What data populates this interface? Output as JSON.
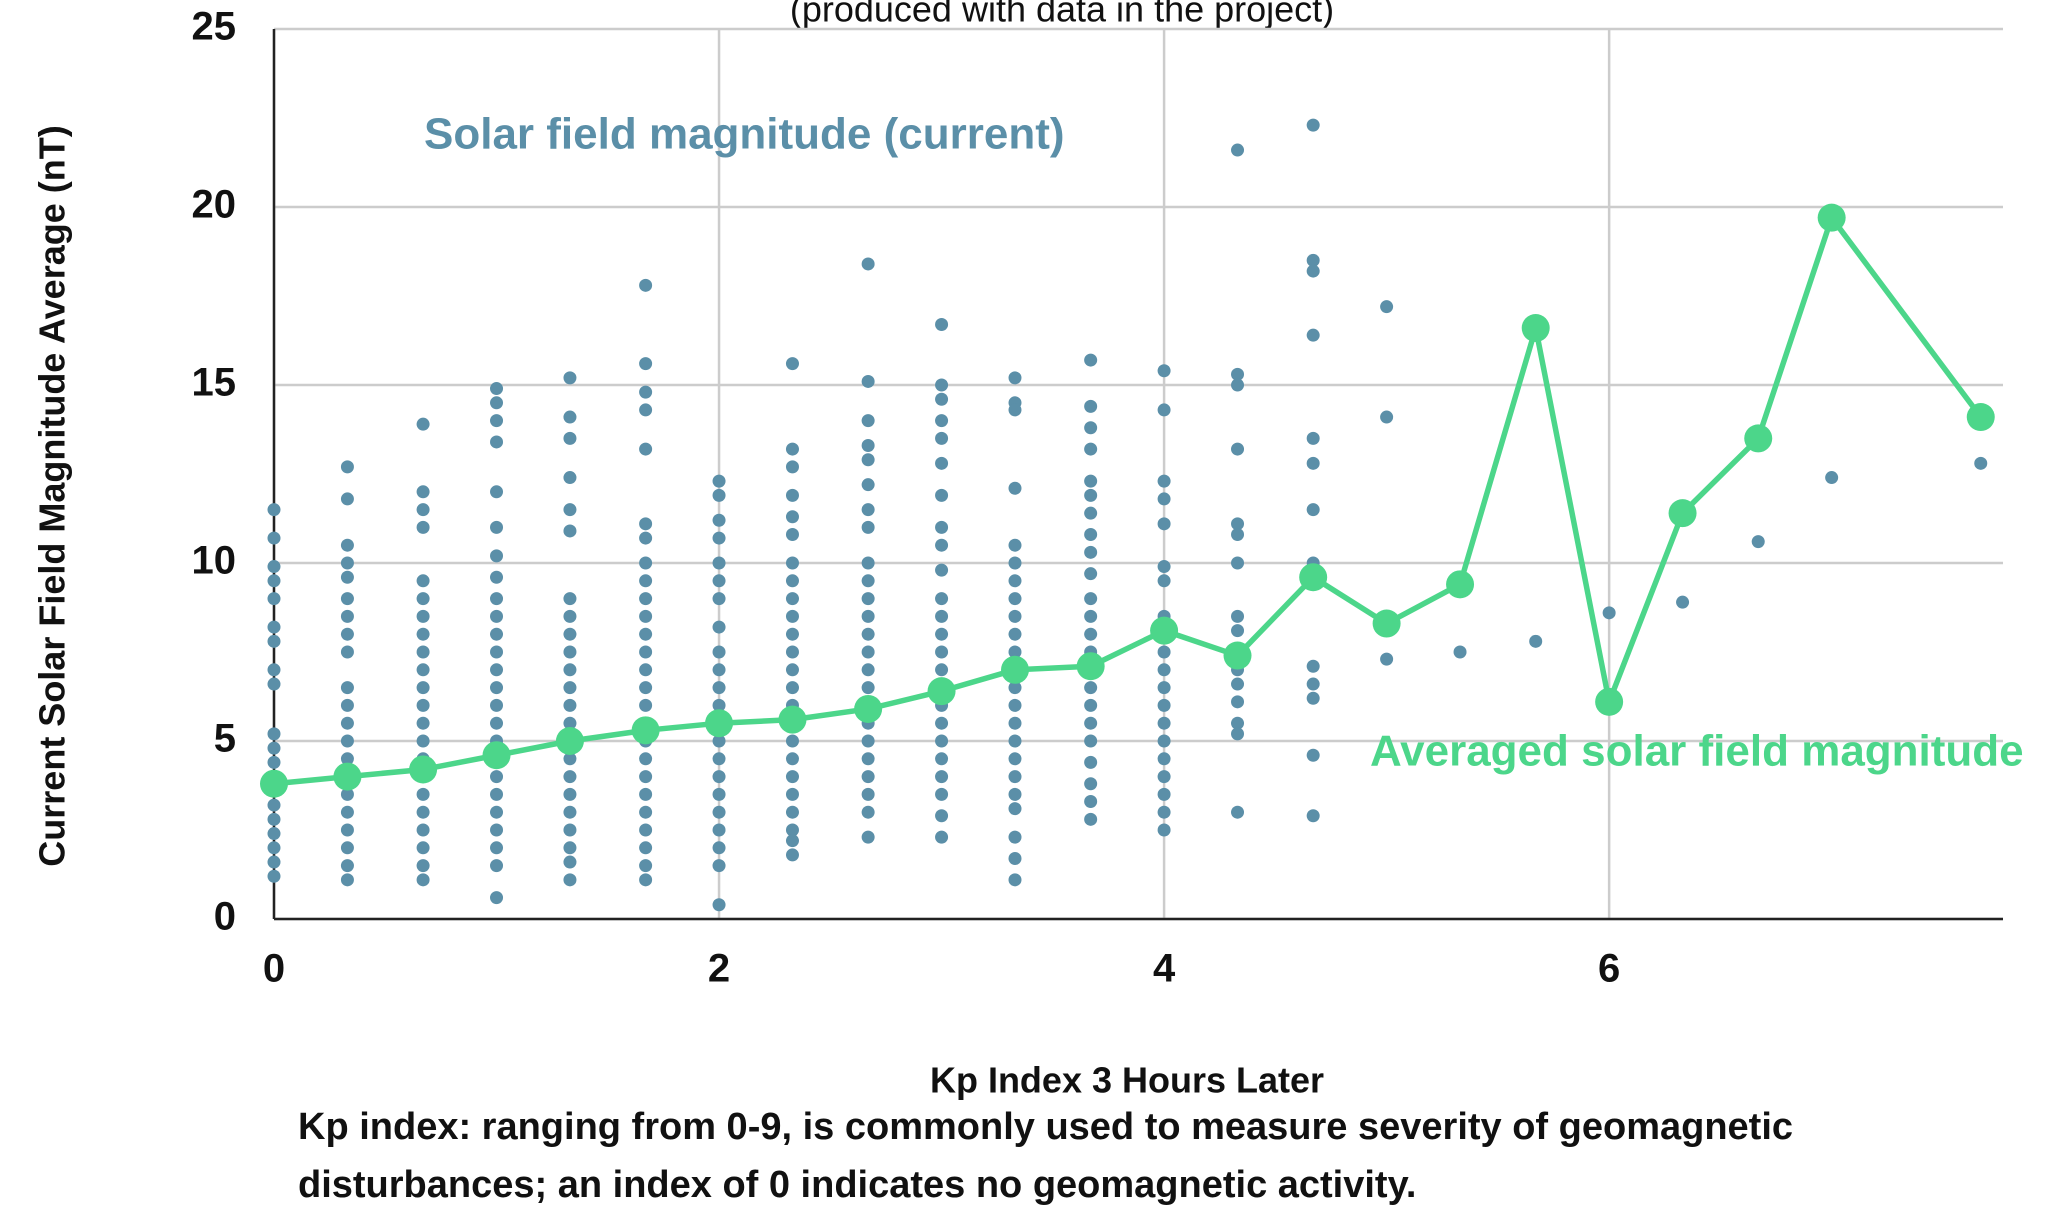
{
  "chart_data": {
    "type": "scatter",
    "title": "(produced with data in the project)",
    "xlabel": "Kp Index 3 Hours Later",
    "ylabel": "Current Solar Field Magnitude Average (nT)",
    "xlim": [
      0,
      7.77
    ],
    "ylim": [
      0,
      25
    ],
    "xticks": [
      0,
      2,
      4,
      6
    ],
    "yticks": [
      0,
      5,
      10,
      15,
      20,
      25
    ],
    "grid": true,
    "note": "Kp index: ranging from 0-9, is commonly used to measure severity of geomagnetic disturbances; an index of 0 indicates no geomagnetic activity.",
    "series": [
      {
        "name": "Solar field magnitude (current)",
        "type": "scatter",
        "color": "#5b8fa8",
        "x": [
          0,
          0,
          0,
          0,
          0,
          0,
          0,
          0,
          0,
          0,
          0,
          0,
          0,
          0,
          0,
          0,
          0,
          0,
          0,
          0,
          0.33,
          0.33,
          0.33,
          0.33,
          0.33,
          0.33,
          0.33,
          0.33,
          0.33,
          0.33,
          0.33,
          0.33,
          0.33,
          0.33,
          0.33,
          0.33,
          0.33,
          0.33,
          0.33,
          0.33,
          0.33,
          0.67,
          0.67,
          0.67,
          0.67,
          0.67,
          0.67,
          0.67,
          0.67,
          0.67,
          0.67,
          0.67,
          0.67,
          0.67,
          0.67,
          0.67,
          0.67,
          0.67,
          0.67,
          0.67,
          0.67,
          0.67,
          0.67,
          1,
          1,
          1,
          1,
          1,
          1,
          1,
          1,
          1,
          1,
          1,
          1,
          1,
          1,
          1,
          1,
          1,
          1,
          1,
          1,
          1,
          1,
          1,
          1,
          1,
          1.33,
          1.33,
          1.33,
          1.33,
          1.33,
          1.33,
          1.33,
          1.33,
          1.33,
          1.33,
          1.33,
          1.33,
          1.33,
          1.33,
          1.33,
          1.33,
          1.33,
          1.33,
          1.33,
          1.33,
          1.33,
          1.33,
          1.33,
          1.67,
          1.67,
          1.67,
          1.67,
          1.67,
          1.67,
          1.67,
          1.67,
          1.67,
          1.67,
          1.67,
          1.67,
          1.67,
          1.67,
          1.67,
          1.67,
          1.67,
          1.67,
          1.67,
          1.67,
          1.67,
          1.67,
          1.67,
          1.67,
          1.67,
          1.67,
          2,
          2,
          2,
          2,
          2,
          2,
          2,
          2,
          2,
          2,
          2,
          2,
          2,
          2,
          2,
          2,
          2,
          2,
          2,
          2,
          2,
          2,
          2.33,
          2.33,
          2.33,
          2.33,
          2.33,
          2.33,
          2.33,
          2.33,
          2.33,
          2.33,
          2.33,
          2.33,
          2.33,
          2.33,
          2.33,
          2.33,
          2.33,
          2.33,
          2.33,
          2.33,
          2.33,
          2.33,
          2.33,
          2.33,
          2.67,
          2.67,
          2.67,
          2.67,
          2.67,
          2.67,
          2.67,
          2.67,
          2.67,
          2.67,
          2.67,
          2.67,
          2.67,
          2.67,
          2.67,
          2.67,
          2.67,
          2.67,
          2.67,
          2.67,
          2.67,
          2.67,
          2.67,
          2.67,
          3,
          3,
          3,
          3,
          3,
          3,
          3,
          3,
          3,
          3,
          3,
          3,
          3,
          3,
          3,
          3,
          3,
          3,
          3,
          3,
          3,
          3,
          3,
          3,
          3.33,
          3.33,
          3.33,
          3.33,
          3.33,
          3.33,
          3.33,
          3.33,
          3.33,
          3.33,
          3.33,
          3.33,
          3.33,
          3.33,
          3.33,
          3.33,
          3.33,
          3.33,
          3.33,
          3.33,
          3.33,
          3.33,
          3.33,
          3.67,
          3.67,
          3.67,
          3.67,
          3.67,
          3.67,
          3.67,
          3.67,
          3.67,
          3.67,
          3.67,
          3.67,
          3.67,
          3.67,
          3.67,
          3.67,
          3.67,
          3.67,
          3.67,
          3.67,
          3.67,
          3.67,
          3.67,
          4,
          4,
          4,
          4,
          4,
          4,
          4,
          4,
          4,
          4,
          4,
          4,
          4,
          4,
          4,
          4,
          4,
          4,
          4,
          4,
          4.33,
          4.33,
          4.33,
          4.33,
          4.33,
          4.33,
          4.33,
          4.33,
          4.33,
          4.33,
          4.33,
          4.33,
          4.33,
          4.33,
          4.33,
          4.67,
          4.67,
          4.67,
          4.67,
          4.67,
          4.67,
          4.67,
          4.67,
          4.67,
          4.67,
          4.67,
          4.67,
          4.67,
          5,
          5,
          5,
          5.33,
          5.67,
          6,
          6.33,
          6.67,
          7,
          7.67
        ],
        "values": [
          11.5,
          10.7,
          9.9,
          9.5,
          9,
          8.2,
          7.8,
          7,
          6.6,
          5.2,
          4.8,
          4.4,
          4,
          3.6,
          3.2,
          2.8,
          2.4,
          2,
          1.6,
          1.2,
          12.7,
          11.8,
          10.5,
          10,
          9.6,
          9,
          8.5,
          8,
          7.5,
          6.5,
          6,
          5.5,
          5,
          4.5,
          4,
          3.5,
          3,
          2.5,
          2,
          1.5,
          1.1,
          13.9,
          12,
          11.5,
          11,
          9.5,
          9,
          8.5,
          8,
          7.5,
          7,
          6.5,
          6,
          5.5,
          5,
          4.5,
          4,
          3.5,
          3,
          2.5,
          2,
          1.5,
          1.1,
          14.9,
          14.5,
          14,
          13.4,
          12,
          11,
          10.2,
          9.6,
          9,
          8.5,
          8,
          7.5,
          7,
          6.5,
          6,
          5.5,
          5,
          4.5,
          4,
          3.5,
          3,
          2.5,
          2,
          1.5,
          0.6,
          15.2,
          14.1,
          13.5,
          12.4,
          11.5,
          10.9,
          9,
          8.5,
          8,
          7.5,
          7,
          6.5,
          6,
          5.5,
          5,
          4.5,
          4,
          3.5,
          3,
          2.5,
          2,
          1.6,
          1.1,
          17.8,
          15.6,
          14.8,
          14.3,
          13.2,
          11.1,
          10.7,
          10,
          9.5,
          9,
          8.5,
          8,
          7.5,
          7,
          6.5,
          6,
          5.5,
          5,
          4.5,
          4,
          3.5,
          3,
          2.5,
          2,
          1.5,
          1.1,
          12.3,
          11.9,
          11.2,
          10.7,
          10,
          9.5,
          9,
          8.2,
          7.5,
          7,
          6.5,
          6,
          5.5,
          5,
          4.5,
          4,
          3.5,
          3,
          2.5,
          2,
          1.5,
          0.4,
          15.6,
          13.2,
          12.7,
          11.9,
          11.3,
          10.8,
          10,
          9.5,
          9,
          8.5,
          8,
          7.5,
          7,
          6.5,
          6,
          5.5,
          5,
          4.5,
          4,
          3.5,
          3,
          2.5,
          2.2,
          1.8,
          18.4,
          15.1,
          14,
          13.3,
          12.9,
          12.2,
          11.5,
          11,
          10,
          9.5,
          9,
          8.5,
          8,
          7.5,
          7,
          6.5,
          6,
          5.5,
          5,
          4.5,
          4,
          3.5,
          3,
          2.3,
          16.7,
          15,
          14.6,
          14,
          13.5,
          12.8,
          11.9,
          11,
          10.5,
          9.8,
          9,
          8.5,
          8,
          7.5,
          7,
          6.5,
          6,
          5.5,
          5,
          4.5,
          4,
          3.5,
          2.9,
          2.3,
          15.2,
          14.5,
          14.3,
          12.1,
          10.5,
          10,
          9.5,
          9,
          8.5,
          8,
          7.5,
          7,
          6.5,
          6,
          5.5,
          5,
          4.5,
          4,
          3.5,
          3.1,
          2.3,
          1.7,
          1.1,
          15.7,
          14.4,
          13.8,
          13.2,
          12.3,
          11.9,
          11.4,
          10.8,
          10.3,
          9.7,
          9,
          8.5,
          8,
          7.5,
          7,
          6.5,
          6,
          5.5,
          5,
          4.4,
          3.8,
          3.3,
          2.8,
          15.4,
          14.3,
          12.3,
          11.8,
          11.1,
          9.9,
          9.5,
          8.5,
          8,
          7.5,
          7,
          6.5,
          6,
          5.5,
          5,
          4.5,
          4,
          3.5,
          3,
          2.5,
          21.6,
          15.3,
          15,
          13.2,
          11.1,
          10.8,
          10,
          8.5,
          8.1,
          7,
          6.6,
          6.1,
          5.5,
          5.2,
          3,
          22.3,
          18.5,
          18.2,
          16.4,
          13.5,
          12.8,
          11.5,
          10,
          7.1,
          6.6,
          6.2,
          4.6,
          2.9,
          17.2,
          14.1,
          7.3,
          7.5,
          7.8,
          8.6,
          8.9,
          10.6,
          12.4,
          12.8
        ]
      },
      {
        "name": "Averaged solar field magnitude",
        "type": "line",
        "color": "#4cd68a",
        "x": [
          0,
          0.33,
          0.67,
          1,
          1.33,
          1.67,
          2,
          2.33,
          2.67,
          3,
          3.33,
          3.67,
          4,
          4.33,
          4.67,
          5,
          5.33,
          5.67,
          6,
          6.33,
          6.67,
          7,
          7.67
        ],
        "values": [
          3.8,
          4.0,
          4.2,
          4.6,
          5.0,
          5.3,
          5.5,
          5.6,
          5.9,
          6.4,
          7.0,
          7.1,
          8.1,
          7.4,
          9.6,
          8.3,
          9.4,
          16.6,
          6.1,
          11.4,
          13.5,
          19.7,
          14.1
        ]
      }
    ]
  }
}
